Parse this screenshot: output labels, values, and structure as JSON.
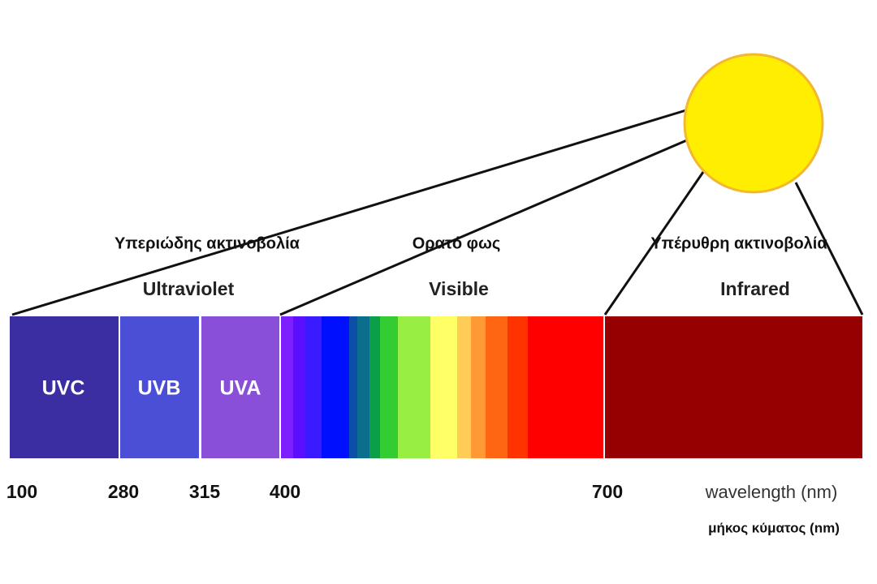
{
  "labels": {
    "uv_greek": "Υπεριώδης ακτινοβολία",
    "visible_greek": "Ορατό φως",
    "ir_greek": "Υπέρυθρη ακτινοβολία",
    "uv": "Ultraviolet",
    "visible": "Visible",
    "ir": "Infrared"
  },
  "bands": [
    "UVC",
    "UVB",
    "UVA"
  ],
  "wavelengths": [
    100,
    280,
    315,
    400,
    700
  ],
  "axis_label": "wavelength (nm)",
  "axis_label_greek": "μήκος κύματος (nm)"
}
